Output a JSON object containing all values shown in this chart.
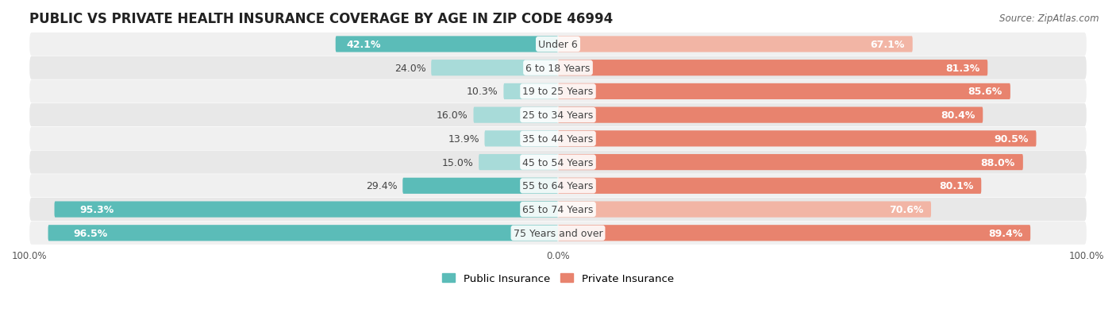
{
  "title": "PUBLIC VS PRIVATE HEALTH INSURANCE COVERAGE BY AGE IN ZIP CODE 46994",
  "source": "Source: ZipAtlas.com",
  "categories": [
    "Under 6",
    "6 to 18 Years",
    "19 to 25 Years",
    "25 to 34 Years",
    "35 to 44 Years",
    "45 to 54 Years",
    "55 to 64 Years",
    "65 to 74 Years",
    "75 Years and over"
  ],
  "public_values": [
    42.1,
    24.0,
    10.3,
    16.0,
    13.9,
    15.0,
    29.4,
    95.3,
    96.5
  ],
  "private_values": [
    67.1,
    81.3,
    85.6,
    80.4,
    90.5,
    88.0,
    80.1,
    70.6,
    89.4
  ],
  "public_color": "#5bbcb8",
  "private_color": "#e8836e",
  "public_color_light": "#a8dbd9",
  "private_color_light": "#f2b5a5",
  "public_label": "Public Insurance",
  "private_label": "Private Insurance",
  "bar_height": 0.68,
  "background_color": "#ffffff",
  "row_bg_colors": [
    "#f0f0f0",
    "#e8e8e8"
  ],
  "center_label_color": "#444444",
  "value_label_color_white": "#ffffff",
  "value_label_color_dark": "#555555",
  "title_fontsize": 12,
  "label_fontsize": 9,
  "tick_fontsize": 8.5,
  "source_fontsize": 8.5,
  "xlim": 100
}
